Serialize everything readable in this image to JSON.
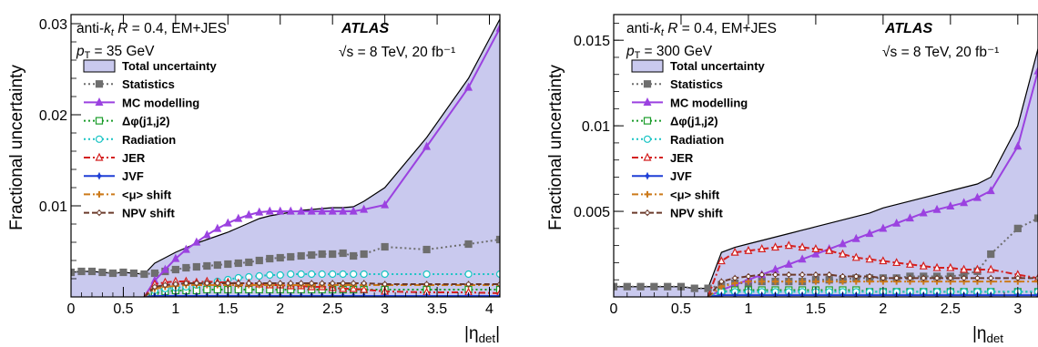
{
  "chart_data": [
    {
      "type": "area",
      "xlabel": "|η_det|",
      "ylabel": "Fractional uncertainty",
      "xlim": [
        0,
        4.1
      ],
      "ylim": [
        0,
        0.031
      ],
      "xticks": [
        0,
        0.5,
        1,
        1.5,
        2,
        2.5,
        3,
        3.5,
        4
      ],
      "xtick_labels": [
        "0",
        "0.5",
        "1",
        "1.5",
        "2",
        "2.5",
        "3",
        "3.5",
        "4"
      ],
      "yticks": [
        0.01,
        0.02,
        0.03
      ],
      "ytick_labels": [
        "0.01",
        "0.02",
        "0.03"
      ],
      "info_lines": [
        "anti-k_t R = 0.4, EM+JES",
        "p_T = 35 GeV"
      ],
      "atlas_label": "ATLAS",
      "energy_label": "√s = 8 TeV, 20 fb⁻¹",
      "x": [
        0,
        0.1,
        0.2,
        0.3,
        0.4,
        0.5,
        0.6,
        0.7,
        0.8,
        0.9,
        1.0,
        1.1,
        1.2,
        1.3,
        1.4,
        1.5,
        1.6,
        1.7,
        1.8,
        1.9,
        2.0,
        2.1,
        2.2,
        2.3,
        2.4,
        2.5,
        2.6,
        2.7,
        2.8,
        3.0,
        3.4,
        3.8,
        4.1
      ],
      "series": [
        {
          "name": "Total uncertainty",
          "style": "band",
          "color": "#c9c9ee",
          "edge": "#000000",
          "values": [
            0.0027,
            0.0028,
            0.0028,
            0.0027,
            0.0026,
            0.0027,
            0.0026,
            0.0025,
            0.0037,
            0.0043,
            0.0049,
            0.0054,
            0.0059,
            0.0063,
            0.0067,
            0.0071,
            0.0076,
            0.0081,
            0.0086,
            0.0089,
            0.0091,
            0.0093,
            0.0095,
            0.0096,
            0.0097,
            0.0098,
            0.0098,
            0.0099,
            0.0105,
            0.012,
            0.0175,
            0.024,
            0.0305
          ]
        },
        {
          "name": "Statistics",
          "style": "dotted",
          "color": "#6e6e6e",
          "marker": "square",
          "values": [
            0.0027,
            0.0028,
            0.0028,
            0.0027,
            0.0026,
            0.0027,
            0.0026,
            0.0025,
            0.0026,
            0.0028,
            0.003,
            0.0032,
            0.0033,
            0.0034,
            0.0035,
            0.0036,
            0.0037,
            0.0038,
            0.004,
            0.0042,
            0.0043,
            0.0044,
            0.0045,
            0.0046,
            0.0047,
            0.0047,
            0.0048,
            0.0045,
            0.0047,
            0.0055,
            0.0052,
            0.0058,
            0.0063
          ]
        },
        {
          "name": "MC modelling",
          "style": "solid",
          "color": "#9b42e0",
          "marker": "triangle",
          "values": [
            null,
            null,
            null,
            null,
            null,
            null,
            null,
            0.0,
            0.0018,
            0.003,
            0.0042,
            0.0052,
            0.006,
            0.0068,
            0.0075,
            0.0081,
            0.0086,
            0.009,
            0.0093,
            0.0094,
            0.0094,
            0.0094,
            0.0094,
            0.0094,
            0.0094,
            0.0094,
            0.0094,
            0.0094,
            0.0096,
            0.0101,
            0.0165,
            0.023,
            0.0295
          ]
        },
        {
          "name": "Δφ(j1,j2)",
          "style": "dotted",
          "color": "#1a9c2a",
          "marker": "open-square",
          "values": [
            null,
            null,
            null,
            null,
            null,
            null,
            null,
            0.0,
            0.0004,
            0.0006,
            0.0007,
            0.0007,
            0.0007,
            0.0008,
            0.0008,
            0.0008,
            0.0008,
            0.0008,
            0.0008,
            0.0008,
            0.0008,
            0.0008,
            0.0008,
            0.0008,
            0.0008,
            0.0008,
            0.0008,
            0.0008,
            0.0008,
            0.0008,
            0.0008,
            0.0008,
            0.0008
          ]
        },
        {
          "name": "Radiation",
          "style": "dotted",
          "color": "#19c4c4",
          "marker": "open-circle",
          "values": [
            null,
            null,
            null,
            null,
            null,
            null,
            null,
            0.0,
            0.0007,
            0.0009,
            0.001,
            0.0011,
            0.0013,
            0.0015,
            0.0017,
            0.0019,
            0.0021,
            0.0022,
            0.0023,
            0.0024,
            0.0024,
            0.0025,
            0.0025,
            0.0025,
            0.0025,
            0.0025,
            0.0025,
            0.0025,
            0.0025,
            0.0025,
            0.0025,
            0.0025,
            0.0025
          ]
        },
        {
          "name": "JER",
          "style": "dashdot",
          "color": "#d42020",
          "marker": "open-triangle",
          "values": [
            null,
            null,
            null,
            null,
            null,
            null,
            null,
            0.0,
            0.0014,
            0.0016,
            0.0017,
            0.0017,
            0.0016,
            0.0017,
            0.0016,
            0.0016,
            0.0015,
            0.0015,
            0.0014,
            0.0013,
            0.0013,
            0.0012,
            0.0012,
            0.0011,
            0.0011,
            0.001,
            0.0009,
            0.0009,
            0.0008,
            0.0006,
            0.0005,
            0.0005,
            0.0004
          ]
        },
        {
          "name": "JVF",
          "style": "solid",
          "color": "#1f3fd6",
          "marker": "star",
          "values": [
            null,
            null,
            null,
            null,
            null,
            null,
            null,
            0.0,
            0.0001,
            0.0001,
            0.0001,
            0.0001,
            0.0001,
            0.0001,
            0.0001,
            0.0001,
            0.0001,
            0.0001,
            0.0001,
            0.0001,
            0.0001,
            0.0001,
            0.0001,
            0.0001,
            0.0001,
            0.0001,
            0.0001,
            0.0001,
            0.0001,
            0.0001,
            0.0001,
            0.0001,
            0.0001
          ]
        },
        {
          "name": "<μ> shift",
          "style": "dashdot",
          "color": "#cc7a1a",
          "marker": "cross",
          "values": [
            null,
            null,
            null,
            null,
            null,
            null,
            null,
            0.0,
            0.0009,
            0.0011,
            0.0012,
            0.0013,
            0.0013,
            0.0013,
            0.0013,
            0.0013,
            0.0013,
            0.0013,
            0.0013,
            0.0013,
            0.0013,
            0.0013,
            0.0013,
            0.0013,
            0.0013,
            0.0013,
            0.0013,
            0.0013,
            0.0013,
            0.0013,
            0.0013,
            0.0013,
            0.0013
          ]
        },
        {
          "name": "NPV shift",
          "style": "dashed",
          "color": "#6b3a2a",
          "marker": "open-cross",
          "values": [
            null,
            null,
            null,
            null,
            null,
            null,
            null,
            0.0,
            0.0011,
            0.0013,
            0.0014,
            0.0015,
            0.0015,
            0.0015,
            0.0015,
            0.0015,
            0.0015,
            0.0015,
            0.0015,
            0.0015,
            0.0015,
            0.0015,
            0.0015,
            0.0015,
            0.0015,
            0.0015,
            0.0015,
            0.0015,
            0.0015,
            0.0014,
            0.0014,
            0.0014,
            0.0014
          ]
        }
      ]
    },
    {
      "type": "area",
      "xlabel": "|η_det",
      "ylabel": "Fractional uncertainty",
      "xlim": [
        0,
        3.15
      ],
      "ylim": [
        0,
        0.0165
      ],
      "xticks": [
        0,
        0.5,
        1,
        1.5,
        2,
        2.5,
        3
      ],
      "xtick_labels": [
        "0",
        "0.5",
        "1",
        "1.5",
        "2",
        "2.5",
        "3"
      ],
      "yticks": [
        0.005,
        0.01,
        0.015
      ],
      "ytick_labels": [
        "0.005",
        "0.01",
        "0.015"
      ],
      "info_lines": [
        "anti-k_t R = 0.4, EM+JES",
        "p_T = 300 GeV"
      ],
      "atlas_label": "ATLAS",
      "energy_label": "√s = 8 TeV, 20 fb⁻¹",
      "x": [
        0,
        0.1,
        0.2,
        0.3,
        0.4,
        0.5,
        0.6,
        0.7,
        0.8,
        0.9,
        1.0,
        1.1,
        1.2,
        1.3,
        1.4,
        1.5,
        1.6,
        1.7,
        1.8,
        1.9,
        2.0,
        2.1,
        2.2,
        2.3,
        2.4,
        2.5,
        2.6,
        2.7,
        2.8,
        3.0,
        3.15
      ],
      "series": [
        {
          "name": "Total uncertainty",
          "style": "band",
          "color": "#c9c9ee",
          "edge": "#000000",
          "values": [
            0.0006,
            0.0006,
            0.0006,
            0.0006,
            0.0006,
            0.0006,
            0.0005,
            0.0005,
            0.0026,
            0.0029,
            0.0031,
            0.0033,
            0.0035,
            0.0037,
            0.0039,
            0.0041,
            0.0043,
            0.0045,
            0.0047,
            0.0049,
            0.0052,
            0.0054,
            0.0056,
            0.0058,
            0.006,
            0.0062,
            0.0064,
            0.0066,
            0.007,
            0.01,
            0.0145
          ]
        },
        {
          "name": "Statistics",
          "style": "dotted",
          "color": "#6e6e6e",
          "marker": "square",
          "values": [
            0.0006,
            0.0006,
            0.0006,
            0.0006,
            0.0006,
            0.0006,
            0.0005,
            0.0005,
            0.0007,
            0.0008,
            0.0008,
            0.0009,
            0.0009,
            0.0009,
            0.0009,
            0.001,
            0.001,
            0.001,
            0.0011,
            0.0011,
            0.0011,
            0.0011,
            0.0012,
            0.0012,
            0.0012,
            0.0012,
            0.0013,
            0.0015,
            0.0025,
            0.004,
            0.0046
          ]
        },
        {
          "name": "MC modelling",
          "style": "solid",
          "color": "#9b42e0",
          "marker": "triangle",
          "values": [
            null,
            null,
            null,
            null,
            null,
            null,
            null,
            0.0,
            0.0004,
            0.0007,
            0.001,
            0.0013,
            0.0016,
            0.0019,
            0.0022,
            0.0025,
            0.0028,
            0.0031,
            0.0034,
            0.0037,
            0.004,
            0.0043,
            0.0046,
            0.0049,
            0.0051,
            0.0053,
            0.0055,
            0.0058,
            0.0062,
            0.0088,
            0.0132
          ]
        },
        {
          "name": "Δφ(j1,j2)",
          "style": "dotted",
          "color": "#1a9c2a",
          "marker": "open-square",
          "values": [
            null,
            null,
            null,
            null,
            null,
            null,
            null,
            0.0,
            0.0003,
            0.0004,
            0.0004,
            0.0004,
            0.0004,
            0.0004,
            0.0004,
            0.0004,
            0.0004,
            0.0004,
            0.0004,
            0.0003,
            0.0003,
            0.0003,
            0.0003,
            0.0003,
            0.0003,
            0.0003,
            0.0003,
            0.0003,
            0.0003,
            0.0003,
            0.0003
          ]
        },
        {
          "name": "Radiation",
          "style": "dotted",
          "color": "#19c4c4",
          "marker": "open-circle",
          "values": [
            null,
            null,
            null,
            null,
            null,
            null,
            null,
            0.0,
            0.0003,
            0.0003,
            0.0003,
            0.0003,
            0.0003,
            0.0003,
            0.0003,
            0.0003,
            0.0003,
            0.0003,
            0.0003,
            0.0003,
            0.0003,
            0.0003,
            0.0003,
            0.0003,
            0.0003,
            0.0003,
            0.0003,
            0.0003,
            0.0003,
            0.0003,
            0.0003
          ]
        },
        {
          "name": "JER",
          "style": "dashdot",
          "color": "#d42020",
          "marker": "open-triangle",
          "values": [
            null,
            null,
            null,
            null,
            null,
            null,
            null,
            0.0,
            0.0021,
            0.0026,
            0.0027,
            0.0028,
            0.0029,
            0.003,
            0.0029,
            0.0028,
            0.0027,
            0.0025,
            0.0023,
            0.0022,
            0.0021,
            0.002,
            0.0019,
            0.0018,
            0.0017,
            0.0017,
            0.0016,
            0.0016,
            0.0016,
            0.0013,
            0.0011
          ]
        },
        {
          "name": "JVF",
          "style": "solid",
          "color": "#1f3fd6",
          "marker": "star",
          "values": [
            null,
            null,
            null,
            null,
            null,
            null,
            null,
            0.0,
            0.0001,
            0.0001,
            0.0001,
            0.0001,
            0.0001,
            0.0001,
            0.0001,
            0.0001,
            0.0001,
            0.0001,
            0.0001,
            0.0001,
            0.0001,
            0.0001,
            0.0001,
            0.0001,
            0.0001,
            0.0001,
            0.0001,
            0.0001,
            0.0001,
            0.0001,
            0.0001
          ]
        },
        {
          "name": "<μ> shift",
          "style": "dashdot",
          "color": "#cc7a1a",
          "marker": "cross",
          "values": [
            null,
            null,
            null,
            null,
            null,
            null,
            null,
            0.0,
            0.0006,
            0.0008,
            0.0009,
            0.0009,
            0.0009,
            0.0009,
            0.0009,
            0.0009,
            0.0009,
            0.0009,
            0.0009,
            0.0009,
            0.0009,
            0.0009,
            0.0009,
            0.0009,
            0.0009,
            0.0009,
            0.0009,
            0.0009,
            0.0009,
            0.0009,
            0.0009
          ]
        },
        {
          "name": "NPV shift",
          "style": "dashed",
          "color": "#6b3a2a",
          "marker": "open-cross",
          "values": [
            null,
            null,
            null,
            null,
            null,
            null,
            null,
            0.0,
            0.0009,
            0.0011,
            0.0012,
            0.0013,
            0.0013,
            0.0013,
            0.0013,
            0.0013,
            0.0013,
            0.0012,
            0.0012,
            0.0012,
            0.0011,
            0.0011,
            0.0011,
            0.0011,
            0.0011,
            0.0011,
            0.0011,
            0.0011,
            0.0011,
            0.0011,
            0.0011
          ]
        }
      ]
    }
  ]
}
